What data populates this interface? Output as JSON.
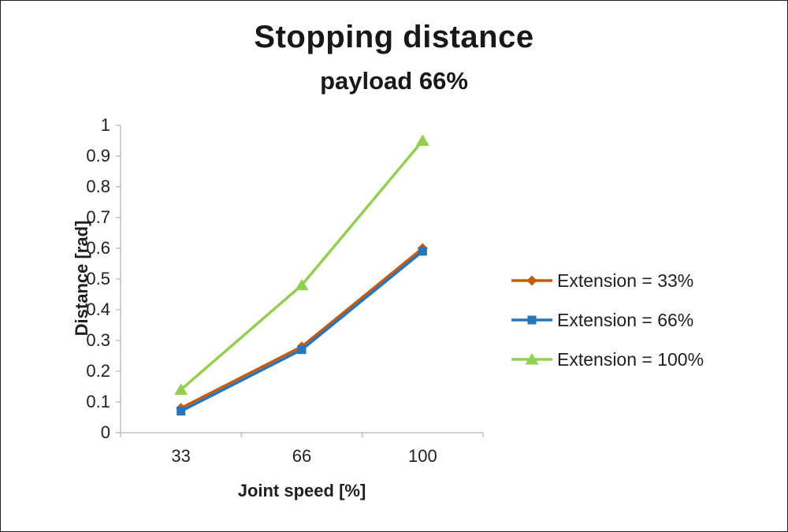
{
  "title": "Stopping distance",
  "subtitle": "payload 66%",
  "chart_data": {
    "type": "line",
    "categories": [
      "33",
      "66",
      "100"
    ],
    "series": [
      {
        "name": "Extension = 33%",
        "values": [
          0.08,
          0.28,
          0.6
        ],
        "color": "#C55A11",
        "marker": "diamond"
      },
      {
        "name": "Extension = 66%",
        "values": [
          0.07,
          0.27,
          0.59
        ],
        "color": "#2776BB",
        "marker": "square"
      },
      {
        "name": "Extension = 100%",
        "values": [
          0.14,
          0.48,
          0.95
        ],
        "color": "#92D050",
        "marker": "triangle"
      }
    ],
    "xlabel": "Joint speed [%]",
    "ylabel": "Distance [rad]",
    "ylim": [
      0,
      1
    ],
    "ytick_step": 0.1,
    "yticks": [
      "0",
      "0.1",
      "0.2",
      "0.3",
      "0.4",
      "0.5",
      "0.6",
      "0.7",
      "0.8",
      "0.9",
      "1"
    ],
    "xticks": [
      "33",
      "66",
      "100"
    ],
    "grid": false,
    "legend_position": "right"
  },
  "colors": {
    "axis": "#BFBFBF",
    "tick_text": "#1f1f1f",
    "title_text": "#181818"
  }
}
